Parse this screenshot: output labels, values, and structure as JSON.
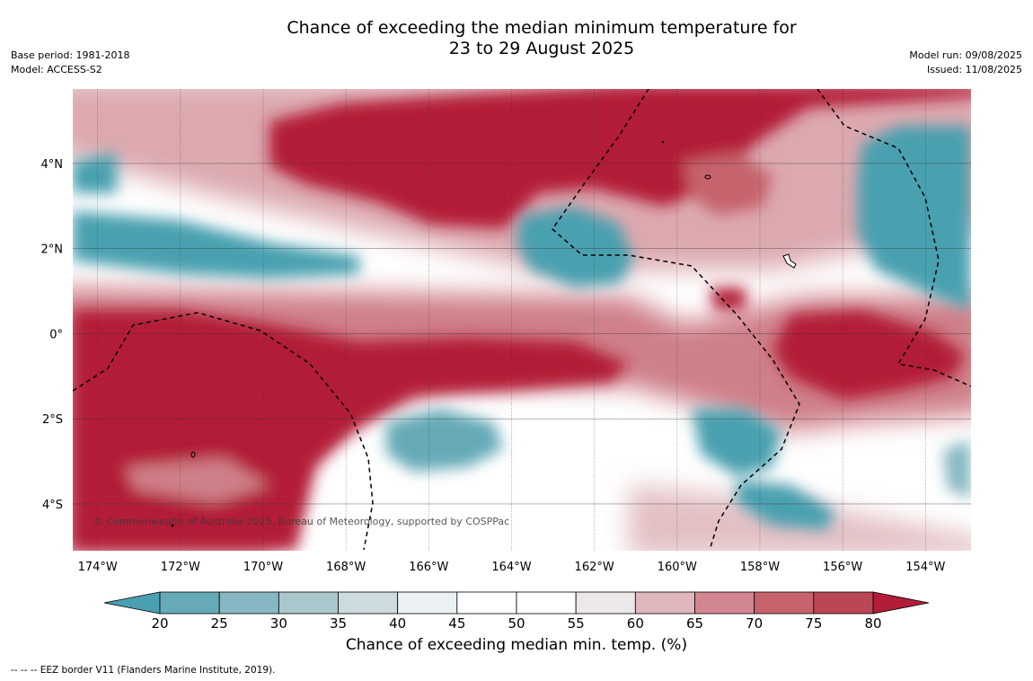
{
  "title": {
    "line1": "Chance of exceeding the median minimum temperature for",
    "line2": "23 to 29 August 2025"
  },
  "info_left": {
    "base_period": "Base period: 1981-2018",
    "model": "Model: ACCESS-S2"
  },
  "info_right": {
    "model_run": "Model run: 09/08/2025",
    "issued": "Issued: 11/08/2025"
  },
  "map": {
    "lon_range": [
      -174.6,
      -152.9
    ],
    "lat_range": [
      -5.1,
      5.75
    ],
    "lon_ticks": [
      -174,
      -172,
      -170,
      -168,
      -166,
      -164,
      -162,
      -160,
      -158,
      -156,
      -154
    ],
    "lon_tick_labels": [
      "174°W",
      "172°W",
      "170°W",
      "168°W",
      "166°W",
      "164°W",
      "162°W",
      "160°W",
      "158°W",
      "156°W",
      "154°W"
    ],
    "lat_ticks": [
      4,
      2,
      0,
      -2,
      -4
    ],
    "lat_tick_labels": [
      "4°N",
      "2°N",
      "0°",
      "2°S",
      "4°S"
    ],
    "grid": true,
    "credit": "© Commonwealth of Australia 2025, Bureau of Meteorology, supported by COSPPac"
  },
  "colorbar": {
    "levels": [
      20,
      25,
      30,
      35,
      40,
      45,
      50,
      55,
      60,
      65,
      70,
      75,
      80
    ],
    "level_labels": [
      "20",
      "25",
      "30",
      "35",
      "40",
      "45",
      "50",
      "55",
      "60",
      "65",
      "70",
      "75",
      "80"
    ],
    "colors": [
      "#4aa0b0",
      "#66aab8",
      "#86b7c2",
      "#a9c7cd",
      "#ccdbde",
      "#ebf0f2",
      "#ffffff",
      "#ffffff",
      "#ece7e8",
      "#e0b7bc",
      "#d28790",
      "#c6636d",
      "#bb4656",
      "#b31d39"
    ],
    "label": "Chance of exceeding median min. temp. (%)"
  },
  "footnote": "-- -- -- EEZ border V11 (Flanders Marine Institute, 2019)."
}
